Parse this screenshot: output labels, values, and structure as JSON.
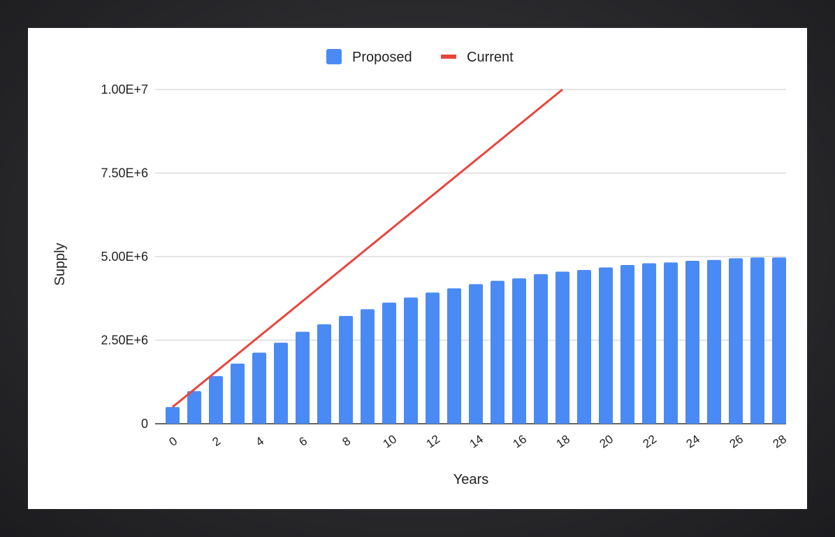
{
  "colors": {
    "proposed": "#4a8af4",
    "current": "#e8453c",
    "grid": "#dcdcdc",
    "axis": "#333333"
  },
  "legend": {
    "position": "top",
    "items": [
      {
        "label": "Proposed",
        "marker": "square"
      },
      {
        "label": "Current",
        "marker": "line"
      }
    ]
  },
  "chart_data": {
    "type": "bar",
    "xlabel": "Years",
    "ylabel": "Supply",
    "ylim": [
      0,
      10000000
    ],
    "yticks": [
      {
        "value": 0,
        "label": "0"
      },
      {
        "value": 2500000,
        "label": "2.50E+6"
      },
      {
        "value": 5000000,
        "label": "5.00E+6"
      },
      {
        "value": 7500000,
        "label": "7.50E+6"
      },
      {
        "value": 10000000,
        "label": "1.00E+7"
      }
    ],
    "x": [
      0,
      1,
      2,
      3,
      4,
      5,
      6,
      7,
      8,
      9,
      10,
      11,
      12,
      13,
      14,
      15,
      16,
      17,
      18,
      19,
      20,
      21,
      22,
      23,
      24,
      25,
      26,
      27,
      28
    ],
    "xtick_labels": [
      "0",
      "2",
      "4",
      "6",
      "8",
      "10",
      "12",
      "14",
      "16",
      "18",
      "20",
      "22",
      "24",
      "26",
      "28"
    ],
    "grid": true,
    "series": [
      {
        "name": "Proposed",
        "type": "bar",
        "values": [
          500000,
          975000,
          1425000,
          1800000,
          2125000,
          2425000,
          2750000,
          2975000,
          3225000,
          3425000,
          3625000,
          3775000,
          3925000,
          4050000,
          4175000,
          4275000,
          4350000,
          4475000,
          4550000,
          4600000,
          4675000,
          4750000,
          4800000,
          4825000,
          4875000,
          4900000,
          4950000,
          4975000,
          4975000
        ]
      },
      {
        "name": "Current",
        "type": "line",
        "x": [
          0,
          18
        ],
        "values": [
          500000,
          10000000
        ]
      }
    ]
  }
}
